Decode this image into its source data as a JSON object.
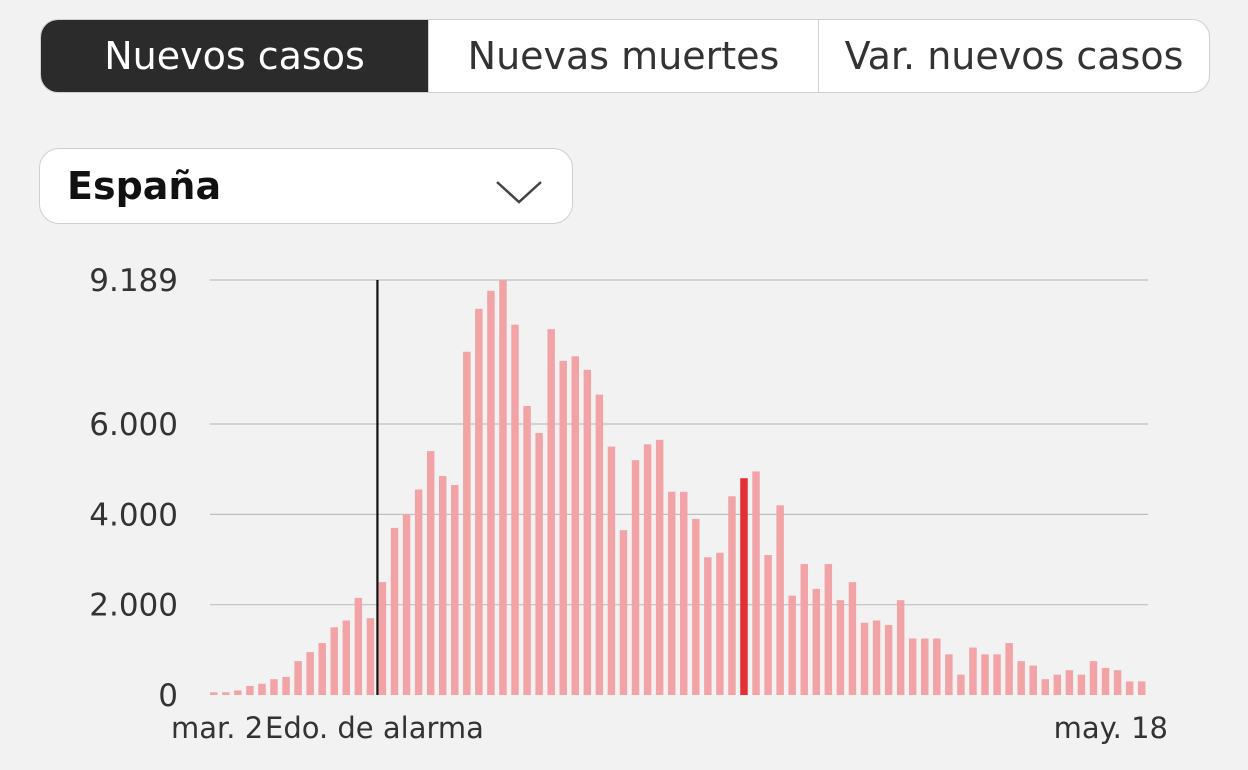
{
  "tabs": {
    "new_cases": "Nuevos casos",
    "new_deaths": "Nuevas muertes",
    "var_new_cases": "Var. nuevos casos",
    "active": "new_cases"
  },
  "region_select": {
    "selected": "España"
  },
  "colors": {
    "bar": "#f2a3a6",
    "highlight_bar": "#e32f35",
    "alarm_line": "#111111",
    "grid": "#bfbfbf"
  },
  "chart_data": {
    "type": "bar",
    "series_name": "Nuevos casos",
    "y_ticks": [
      {
        "value": 0,
        "label": "0"
      },
      {
        "value": 2000,
        "label": "2.000"
      },
      {
        "value": 4000,
        "label": "4.000"
      },
      {
        "value": 6000,
        "label": "6.000"
      },
      {
        "value": 9189,
        "label": "9.189"
      }
    ],
    "ylim": [
      0,
      9189
    ],
    "x_start_label": "mar. 2",
    "x_end_label": "may. 18",
    "annotation": {
      "label": "Edo. de alarma",
      "after_index": 13
    },
    "highlight_index": 44,
    "values": [
      60,
      60,
      100,
      200,
      250,
      350,
      400,
      750,
      950,
      1150,
      1500,
      1650,
      2150,
      1700,
      2500,
      3700,
      4000,
      4550,
      5400,
      4850,
      4650,
      7600,
      8550,
      8950,
      9189,
      8200,
      6400,
      5800,
      8100,
      7400,
      7500,
      7200,
      6650,
      5500,
      3650,
      5200,
      5550,
      5650,
      4500,
      4500,
      3900,
      3050,
      3150,
      4400,
      4800,
      4950,
      3100,
      4200,
      2200,
      2900,
      2350,
      2900,
      2100,
      2500,
      1600,
      1650,
      1550,
      2100,
      1250,
      1250,
      1250,
      900,
      450,
      1050,
      900,
      900,
      1150,
      750,
      650,
      350,
      450,
      550,
      450,
      750,
      600,
      550,
      300,
      300
    ]
  }
}
